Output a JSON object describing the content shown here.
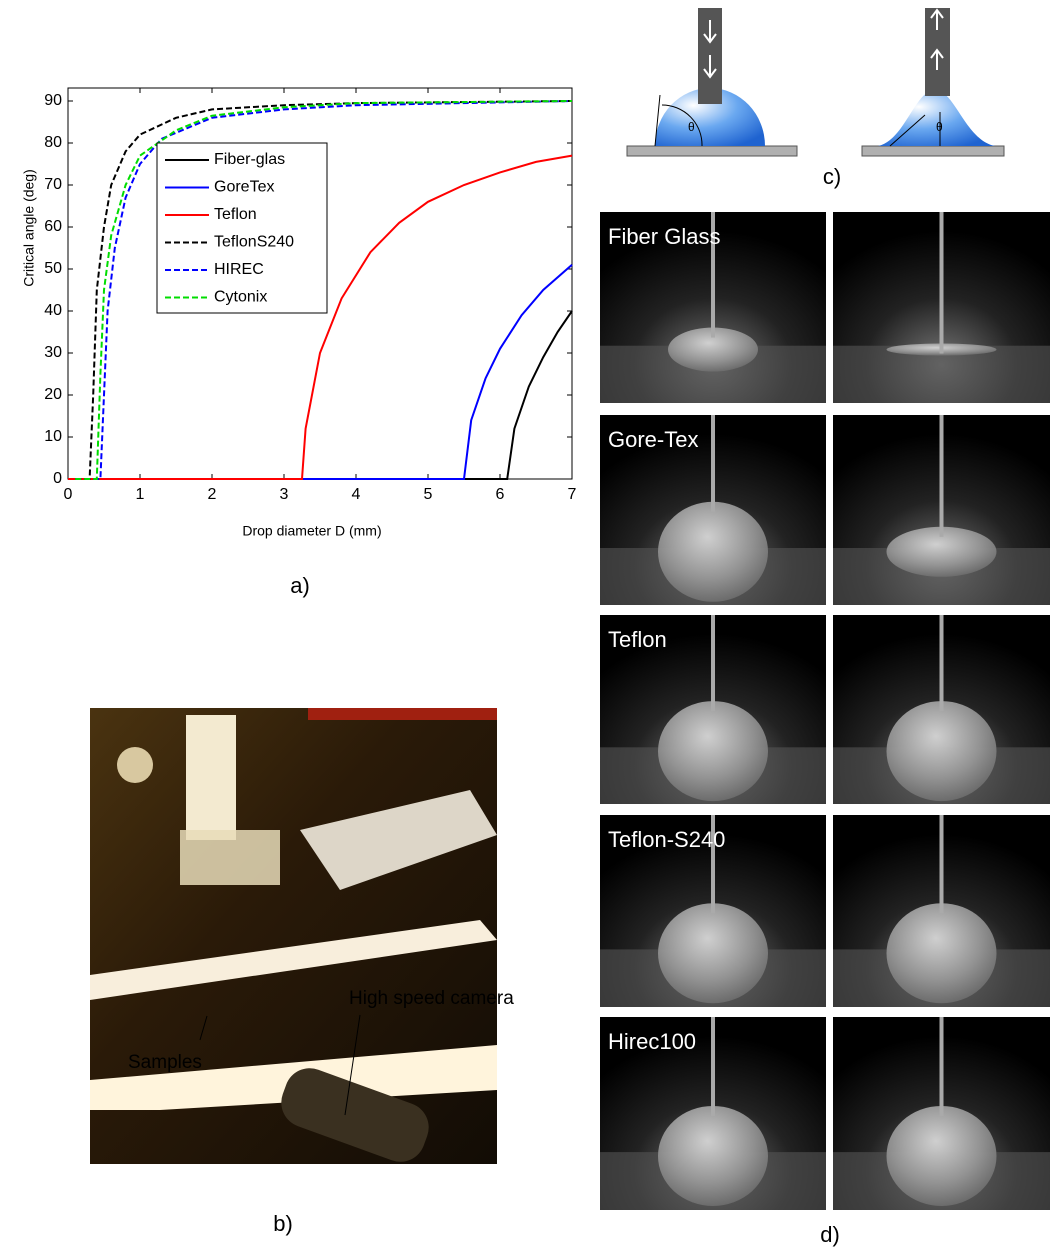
{
  "chart_data": {
    "type": "line",
    "x_label": "Drop diameter D (mm)",
    "y_label": "Critical angle (deg)",
    "xlim": [
      0,
      7
    ],
    "ylim": [
      0,
      90
    ],
    "xticks": [
      0,
      1,
      2,
      3,
      4,
      5,
      6,
      7
    ],
    "yticks": [
      0,
      10,
      20,
      30,
      40,
      50,
      60,
      70,
      80,
      90
    ],
    "legend": "upper left",
    "series": [
      {
        "name": "Fiber-glas",
        "color": "#000000",
        "dash": false,
        "x": [
          0,
          6.1,
          6.2,
          6.4,
          6.6,
          6.8,
          7
        ],
        "values": [
          0,
          0,
          12,
          22,
          29,
          35,
          40
        ]
      },
      {
        "name": "GoreTex",
        "color": "#0000ff",
        "dash": false,
        "x": [
          0,
          5.5,
          5.6,
          5.8,
          6.0,
          6.3,
          6.6,
          7
        ],
        "values": [
          0,
          0,
          14,
          24,
          31,
          39,
          45,
          51
        ]
      },
      {
        "name": "Teflon",
        "color": "#ff0000",
        "dash": false,
        "x": [
          0,
          3.25,
          3.3,
          3.5,
          3.8,
          4.2,
          4.6,
          5,
          5.5,
          6,
          6.5,
          7
        ],
        "values": [
          0,
          0,
          12,
          30,
          43,
          54,
          61,
          66,
          70,
          73,
          75.5,
          77
        ]
      },
      {
        "name": "TeflonS240",
        "color": "#000000",
        "dash": true,
        "x": [
          0.1,
          0.3,
          0.35,
          0.4,
          0.5,
          0.6,
          0.8,
          1,
          1.5,
          2,
          3,
          4,
          7
        ],
        "values": [
          0,
          0,
          20,
          45,
          60,
          70,
          78,
          82,
          86,
          88,
          89,
          89.5,
          90
        ]
      },
      {
        "name": "HIREC",
        "color": "#0000ff",
        "dash": true,
        "x": [
          0.1,
          0.45,
          0.5,
          0.55,
          0.65,
          0.8,
          1,
          1.3,
          2,
          3,
          4,
          7
        ],
        "values": [
          0,
          0,
          20,
          40,
          55,
          67,
          75,
          81,
          86,
          88,
          89,
          90
        ]
      },
      {
        "name": "Cytonix",
        "color": "#00dd00",
        "dash": true,
        "x": [
          0.1,
          0.4,
          0.45,
          0.5,
          0.6,
          0.8,
          1,
          1.5,
          2,
          3,
          4,
          7
        ],
        "values": [
          0,
          0,
          25,
          45,
          58,
          70,
          77,
          83,
          86.5,
          88.5,
          89.5,
          90
        ]
      }
    ]
  },
  "panel_labels": [
    "a)",
    "b)",
    "c)",
    "d)"
  ],
  "photo_b": {
    "labels": [
      "High speed camera",
      "Samples"
    ]
  },
  "diagram_c": {
    "angle_symbol": "θ"
  },
  "photos_d": {
    "rows": [
      "Fiber Glass",
      "Gore-Tex",
      "Teflon",
      "Teflon-S240",
      "Hirec100"
    ]
  }
}
